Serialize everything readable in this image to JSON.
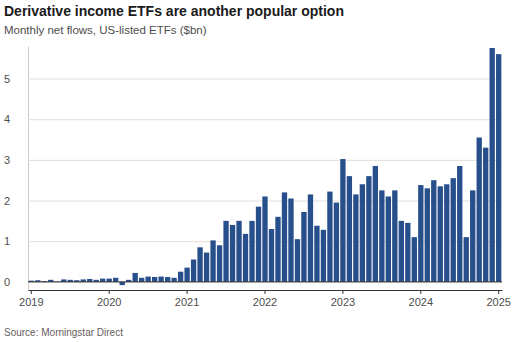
{
  "chart_data": {
    "type": "bar",
    "title": "Derivative income ETFs are another popular option",
    "subtitle": "Monthly net flows, US-listed ETFs ($bn)",
    "source": "Source: Morningstar Direct",
    "categories": [
      "2019",
      null,
      null,
      null,
      null,
      null,
      null,
      null,
      null,
      null,
      null,
      null,
      "2020",
      null,
      null,
      null,
      null,
      null,
      null,
      null,
      null,
      null,
      null,
      null,
      "2021",
      null,
      null,
      null,
      null,
      null,
      null,
      null,
      null,
      null,
      null,
      null,
      "2022",
      null,
      null,
      null,
      null,
      null,
      null,
      null,
      null,
      null,
      null,
      null,
      "2023",
      null,
      null,
      null,
      null,
      null,
      null,
      null,
      null,
      null,
      null,
      null,
      "2024",
      null,
      null,
      null,
      null,
      null,
      null,
      null,
      null,
      null,
      null,
      null,
      "2025"
    ],
    "values": [
      0.03,
      0.04,
      0.02,
      0.05,
      0.01,
      0.06,
      0.05,
      0.04,
      0.06,
      0.07,
      0.05,
      0.08,
      0.08,
      0.1,
      -0.08,
      0.05,
      0.22,
      0.1,
      0.13,
      0.12,
      0.13,
      0.12,
      0.1,
      0.25,
      0.35,
      0.55,
      0.85,
      0.72,
      1.02,
      0.9,
      1.5,
      1.4,
      1.5,
      1.18,
      1.5,
      1.85,
      2.1,
      1.3,
      1.6,
      2.2,
      2.05,
      1.05,
      1.72,
      2.15,
      1.38,
      1.28,
      2.22,
      1.95,
      3.02,
      2.6,
      2.15,
      2.4,
      2.6,
      2.85,
      2.25,
      2.1,
      2.25,
      1.5,
      1.45,
      1.1,
      2.38,
      2.3,
      2.5,
      2.35,
      2.4,
      2.55,
      2.85,
      1.1,
      2.25,
      3.55,
      3.3,
      5.75,
      5.6
    ],
    "color": "#264f8c",
    "ylim": [
      -0.2,
      5.8
    ],
    "yticks": [
      0,
      1,
      2,
      3,
      4,
      5
    ],
    "grid": true
  }
}
